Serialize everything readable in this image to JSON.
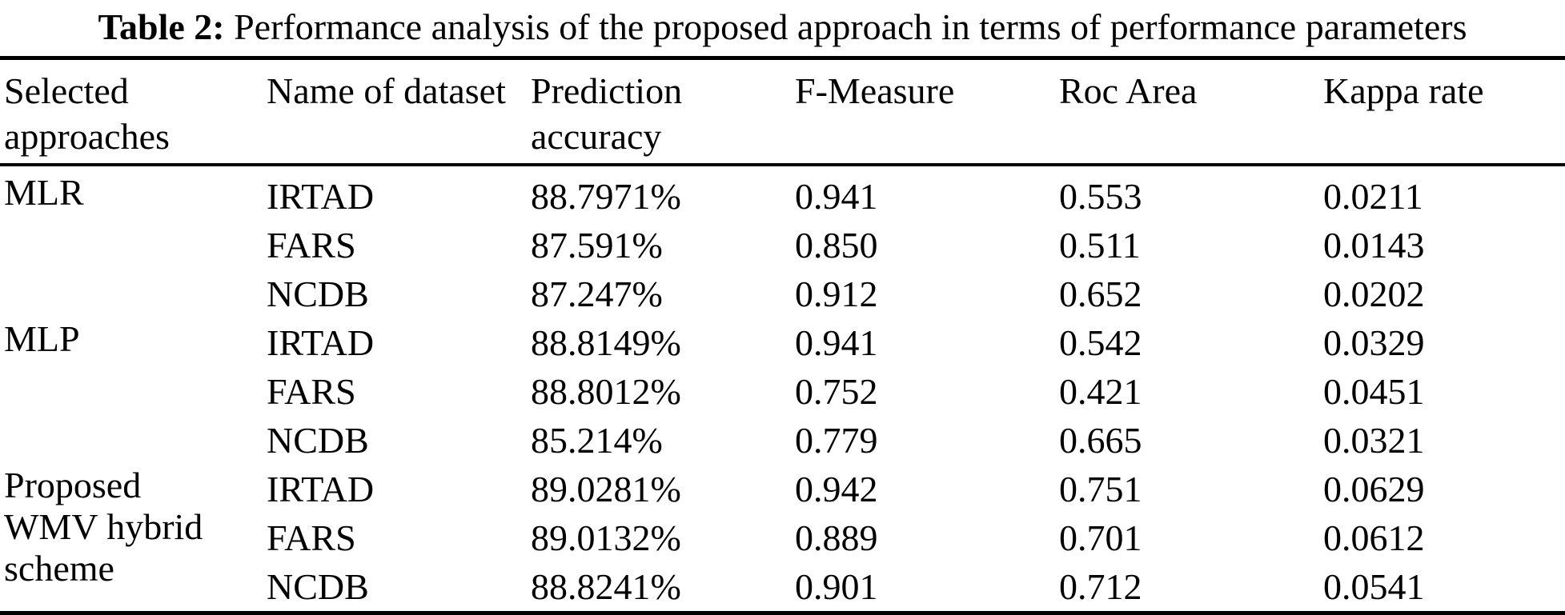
{
  "caption": {
    "label": "Table 2:",
    "text": "Performance analysis of the proposed approach in terms of performance parameters"
  },
  "table": {
    "headers": [
      "Selected approaches",
      "Name of dataset",
      "Prediction accuracy",
      "F-Measure",
      "Roc Area",
      "Kappa rate"
    ],
    "groups": [
      {
        "approach": "MLR",
        "rows": [
          {
            "dataset": "IRTAD",
            "prediction_accuracy": "88.7971%",
            "f_measure": "0.941",
            "roc_area": "0.553",
            "kappa_rate": "0.0211"
          },
          {
            "dataset": "FARS",
            "prediction_accuracy": "87.591%",
            "f_measure": "0.850",
            "roc_area": "0.511",
            "kappa_rate": "0.0143"
          },
          {
            "dataset": "NCDB",
            "prediction_accuracy": "87.247%",
            "f_measure": "0.912",
            "roc_area": "0.652",
            "kappa_rate": "0.0202"
          }
        ]
      },
      {
        "approach": "MLP",
        "rows": [
          {
            "dataset": "IRTAD",
            "prediction_accuracy": "88.8149%",
            "f_measure": "0.941",
            "roc_area": "0.542",
            "kappa_rate": "0.0329"
          },
          {
            "dataset": "FARS",
            "prediction_accuracy": "88.8012%",
            "f_measure": "0.752",
            "roc_area": "0.421",
            "kappa_rate": "0.0451"
          },
          {
            "dataset": "NCDB",
            "prediction_accuracy": "85.214%",
            "f_measure": "0.779",
            "roc_area": "0.665",
            "kappa_rate": "0.0321"
          }
        ]
      },
      {
        "approach": "Proposed WMV hybrid scheme",
        "rows": [
          {
            "dataset": "IRTAD",
            "prediction_accuracy": "89.0281%",
            "f_measure": "0.942",
            "roc_area": "0.751",
            "kappa_rate": "0.0629"
          },
          {
            "dataset": "FARS",
            "prediction_accuracy": "89.0132%",
            "f_measure": "0.889",
            "roc_area": "0.701",
            "kappa_rate": "0.0612"
          },
          {
            "dataset": "NCDB",
            "prediction_accuracy": "88.8241%",
            "f_measure": "0.901",
            "roc_area": "0.712",
            "kappa_rate": "0.0541"
          }
        ]
      }
    ]
  },
  "colors": {
    "text": "#000000",
    "rule": "#000000",
    "background": "#ffffff"
  },
  "chart_data": {
    "type": "table",
    "title": "Table 2: Performance analysis of the proposed approach in terms of performance parameters",
    "columns": [
      "Selected approaches",
      "Name of dataset",
      "Prediction accuracy",
      "F-Measure",
      "Roc Area",
      "Kappa rate"
    ],
    "rows": [
      [
        "MLR",
        "IRTAD",
        "88.7971%",
        "0.941",
        "0.553",
        "0.0211"
      ],
      [
        "MLR",
        "FARS",
        "87.591%",
        "0.850",
        "0.511",
        "0.0143"
      ],
      [
        "MLR",
        "NCDB",
        "87.247%",
        "0.912",
        "0.652",
        "0.0202"
      ],
      [
        "MLP",
        "IRTAD",
        "88.8149%",
        "0.941",
        "0.542",
        "0.0329"
      ],
      [
        "MLP",
        "FARS",
        "88.8012%",
        "0.752",
        "0.421",
        "0.0451"
      ],
      [
        "MLP",
        "NCDB",
        "85.214%",
        "0.779",
        "0.665",
        "0.0321"
      ],
      [
        "Proposed WMV hybrid scheme",
        "IRTAD",
        "89.0281%",
        "0.942",
        "0.751",
        "0.0629"
      ],
      [
        "Proposed WMV hybrid scheme",
        "FARS",
        "89.0132%",
        "0.889",
        "0.701",
        "0.0612"
      ],
      [
        "Proposed WMV hybrid scheme",
        "NCDB",
        "88.8241%",
        "0.901",
        "0.712",
        "0.0541"
      ]
    ]
  }
}
